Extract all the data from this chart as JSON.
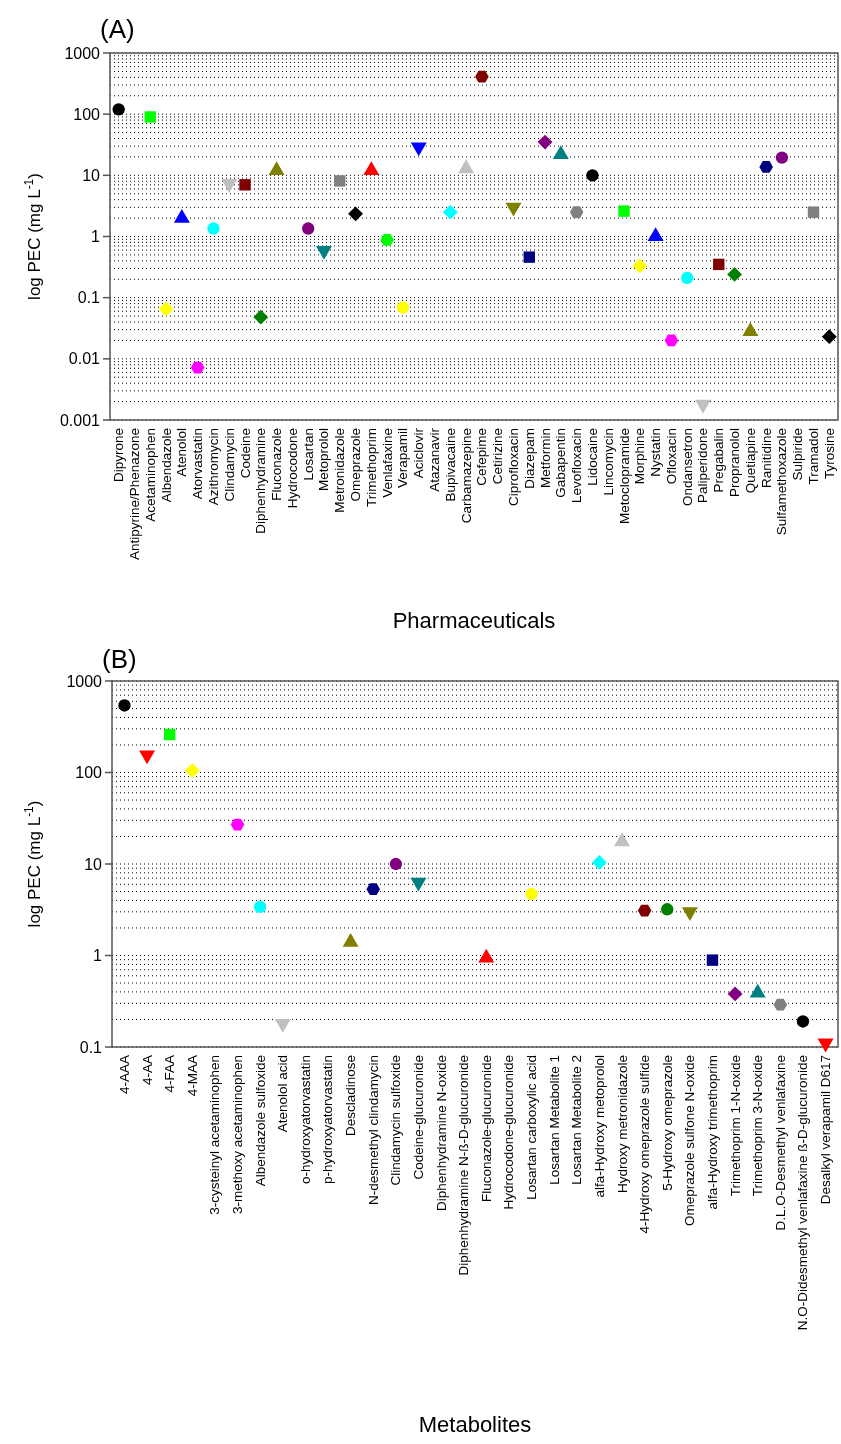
{
  "chart_data": [
    {
      "type": "scatter",
      "title": "(A)",
      "xlabel": "Pharmaceuticals",
      "ylabel": "log PEC (mg L$^{-1}$)",
      "log": "y",
      "grid": true,
      "categories": [
        "Dipyrone",
        "Antipyrine/Phenazone",
        "Acetaminophen",
        "Albendazole",
        "Atenolol",
        "Atorvastatin",
        "Azithromycin",
        "Clindamycin",
        "Codeine",
        "Diphenhydramine",
        "Fluconazole",
        "Hydrocodone",
        "Losartan",
        "Metoprolol",
        "Metronidazole",
        "Omeprazole",
        "Trimethoprim",
        "Venlafaxine",
        "Verapamil",
        "Aciclovir",
        "Atazanavir",
        "Bupivacaine",
        "Carbamazepine",
        "Cefepime",
        "Cetirizine",
        "Ciprofloxacin",
        "Diazepam",
        "Metformin",
        "Gabapentin",
        "Levofloxacin",
        "Lidocaine",
        "Lincomycin",
        "Metoclopramide",
        "Morphine",
        "Nystatin",
        "Ofloxacin",
        "Ondansetron",
        "Paliperidone",
        "Pregabalin",
        "Propranolol",
        "Quetiapine",
        "Ranitidine",
        "Sulfamethoxazole",
        "Sulpiride",
        "Tramadol",
        "Tyrosine"
      ],
      "series": [
        {
          "marker": "circle",
          "values": [
            120,
            null,
            null,
            null,
            null,
            null,
            1.35,
            null,
            null,
            null,
            null,
            null,
            1.35,
            null,
            null,
            null,
            null,
            null,
            0.069,
            null,
            null,
            null,
            null,
            null,
            null,
            null,
            null,
            null,
            null,
            null,
            10,
            null,
            null,
            null,
            null,
            null,
            0.21,
            null,
            null,
            null,
            null,
            null,
            19.5,
            null,
            null,
            null
          ],
          "colors": [
            "#000000",
            null,
            null,
            null,
            null,
            null,
            "#00ffff",
            null,
            null,
            null,
            null,
            null,
            "#800080",
            null,
            null,
            null,
            null,
            null,
            "#ffff00",
            null,
            null,
            null,
            null,
            null,
            null,
            null,
            null,
            null,
            null,
            null,
            "#000000",
            null,
            null,
            null,
            null,
            null,
            "#00ffff",
            null,
            null,
            null,
            null,
            null,
            "#800080",
            null,
            null,
            null
          ]
        },
        {
          "marker": "square",
          "values": [
            null,
            null,
            90,
            null,
            null,
            null,
            null,
            null,
            7,
            null,
            null,
            null,
            null,
            null,
            8.1,
            null,
            null,
            null,
            null,
            null,
            null,
            null,
            null,
            null,
            null,
            null,
            0.46,
            null,
            null,
            null,
            null,
            null,
            2.6,
            null,
            null,
            null,
            null,
            null,
            0.35,
            null,
            null,
            null,
            null,
            null,
            2.5,
            null
          ],
          "colors": [
            null,
            null,
            "#00ff00",
            null,
            null,
            null,
            null,
            null,
            "#800000",
            null,
            null,
            null,
            null,
            null,
            "#808080",
            null,
            null,
            null,
            null,
            null,
            null,
            null,
            null,
            null,
            null,
            null,
            "#000080",
            null,
            null,
            null,
            null,
            null,
            "#00ff00",
            null,
            null,
            null,
            null,
            null,
            "#800000",
            null,
            null,
            null,
            null,
            null,
            "#808080",
            null
          ]
        },
        {
          "marker": "triangle",
          "values": [
            null,
            null,
            null,
            null,
            2,
            null,
            null,
            null,
            null,
            null,
            12,
            null,
            null,
            null,
            null,
            null,
            12,
            null,
            null,
            null,
            null,
            null,
            12.9,
            null,
            null,
            null,
            null,
            null,
            22,
            null,
            null,
            null,
            null,
            null,
            1,
            null,
            null,
            null,
            null,
            null,
            0.028,
            null,
            null,
            null,
            null,
            null
          ],
          "colors": [
            null,
            null,
            null,
            null,
            "#0000ff",
            null,
            null,
            null,
            null,
            null,
            "#808000",
            null,
            null,
            null,
            null,
            null,
            "#ff0000",
            null,
            null,
            null,
            null,
            null,
            "#c0c0c0",
            null,
            null,
            null,
            null,
            null,
            "#008080",
            null,
            null,
            null,
            null,
            null,
            "#0000ff",
            null,
            null,
            null,
            null,
            null,
            "#808000",
            null,
            null,
            null,
            null,
            null
          ]
        },
        {
          "marker": "triangle-down",
          "values": [
            null,
            null,
            null,
            null,
            null,
            null,
            null,
            7.3,
            null,
            null,
            null,
            null,
            null,
            0.59,
            null,
            null,
            null,
            null,
            null,
            29,
            null,
            null,
            null,
            null,
            null,
            3,
            null,
            null,
            null,
            null,
            null,
            null,
            null,
            null,
            null,
            null,
            null,
            0.0018,
            null,
            null,
            null,
            null,
            null,
            null,
            null,
            null
          ],
          "colors": [
            null,
            null,
            null,
            null,
            null,
            null,
            null,
            "#c0c0c0",
            null,
            null,
            null,
            null,
            null,
            "#008080",
            null,
            null,
            null,
            null,
            null,
            "#0000ff",
            null,
            null,
            null,
            null,
            null,
            "#808000",
            null,
            null,
            null,
            null,
            null,
            null,
            null,
            null,
            null,
            null,
            null,
            "#c0c0c0",
            null,
            null,
            null,
            null,
            null,
            null,
            null,
            null
          ]
        },
        {
          "marker": "diamond",
          "values": [
            null,
            null,
            null,
            0.065,
            null,
            null,
            null,
            null,
            null,
            0.048,
            null,
            null,
            null,
            null,
            null,
            2.35,
            null,
            null,
            null,
            null,
            null,
            2.5,
            null,
            null,
            null,
            null,
            null,
            35,
            null,
            null,
            null,
            null,
            null,
            0.33,
            null,
            null,
            null,
            null,
            null,
            0.24,
            null,
            null,
            null,
            null,
            null,
            0.023
          ],
          "colors": [
            null,
            null,
            null,
            "#ffff00",
            null,
            null,
            null,
            null,
            null,
            "#008000",
            null,
            null,
            null,
            null,
            null,
            "#000000",
            null,
            null,
            null,
            null,
            null,
            "#00ffff",
            null,
            null,
            null,
            null,
            null,
            "#800080",
            null,
            null,
            null,
            null,
            null,
            "#ffff00",
            null,
            null,
            null,
            null,
            null,
            "#008000",
            null,
            null,
            null,
            null,
            null,
            "#000000"
          ]
        },
        {
          "values": [
            null,
            null,
            null,
            null,
            null,
            0.0072,
            null,
            null,
            null,
            null,
            null,
            null,
            null,
            null,
            null,
            null,
            null,
            0.88,
            null,
            null,
            null,
            null,
            null,
            410,
            null,
            null,
            null,
            null,
            null,
            2.5,
            null,
            null,
            null,
            null,
            null,
            0.02,
            null,
            null,
            null,
            null,
            null,
            13.7,
            null,
            null,
            null,
            null
          ],
          "colors": [
            null,
            null,
            null,
            null,
            null,
            "#ff00ff",
            null,
            null,
            null,
            null,
            null,
            null,
            null,
            null,
            null,
            null,
            null,
            "#00ff00",
            null,
            null,
            null,
            null,
            null,
            "#800000",
            null,
            null,
            null,
            null,
            null,
            "#808080",
            null,
            null,
            null,
            null,
            null,
            "#ff00ff",
            null,
            null,
            null,
            null,
            null,
            "#000080",
            null,
            null,
            null,
            null
          ]
        }
      ],
      "ylim": [
        0.001,
        1000
      ],
      "yticks": [
        0.001,
        {
          "value": 0.002,
          "label": null
        },
        {
          "value": 0.003,
          "label": null
        },
        {
          "value": 0.004,
          "label": null
        },
        {
          "value": 0.005,
          "label": null
        },
        {
          "value": 0.006,
          "label": null
        },
        {
          "value": 0.007,
          "label": null
        },
        {
          "value": 0.008,
          "label": null
        },
        {
          "value": 0.009,
          "label": null
        },
        0.01,
        {
          "value": 0.02,
          "label": null
        },
        {
          "value": 0.03,
          "label": null
        },
        {
          "value": 0.04,
          "label": null
        },
        {
          "value": 0.05,
          "label": null
        },
        {
          "value": 0.06,
          "label": null
        },
        {
          "value": 0.07,
          "label": null
        },
        {
          "value": 0.08,
          "label": null
        },
        {
          "value": 0.09,
          "label": null
        },
        0.1,
        {
          "value": 0.2,
          "label": null
        },
        {
          "value": 0.3,
          "label": null
        },
        {
          "value": 0.4,
          "label": null
        },
        {
          "value": 0.5,
          "label": null
        },
        {
          "value": 0.6,
          "label": null
        },
        {
          "value": 0.7,
          "label": null
        },
        {
          "value": 0.8,
          "label": null
        },
        {
          "value": 0.9,
          "label": null
        },
        1,
        {
          "value": 2,
          "label": null
        },
        {
          "value": 3,
          "label": null
        },
        {
          "value": 4,
          "label": null
        },
        {
          "value": 5,
          "label": null
        },
        {
          "value": 6,
          "label": null
        },
        {
          "value": 7,
          "label": null
        },
        {
          "value": 8,
          "label": null
        },
        {
          "value": 9,
          "label": null
        },
        10,
        {
          "value": 20,
          "label": null
        },
        {
          "value": 30,
          "label": null
        },
        {
          "value": 40,
          "label": null
        },
        {
          "value": 50,
          "label": null
        },
        {
          "value": 60,
          "label": null
        },
        {
          "value": 70,
          "label": null
        },
        {
          "value": 80,
          "label": null
        },
        {
          "value": 90,
          "label": null
        },
        100,
        {
          "value": 200,
          "label": null
        },
        {
          "value": 300,
          "label": null
        },
        {
          "value": 400,
          "label": null
        },
        {
          "value": 500,
          "label": null
        },
        {
          "value": 600,
          "label": null
        },
        {
          "value": 700,
          "label": null
        },
        {
          "value": 800,
          "label": null
        },
        {
          "value": 900,
          "label": null
        },
        1000
      ]
    },
    {
      "type": "scatter",
      "title": "(B)",
      "xlabel": "Metabolites",
      "ylabel": "log PEC (mg L$^{-1}$)",
      "log": "y",
      "grid": true,
      "categories": [
        "4-AAA",
        "4-AA",
        "4-FAA",
        "4-MAA",
        "3-cysteinyl acetaminophen",
        "3-methoxy acetaminophen",
        "Albendazole sulfoxide",
        "Atenolol acid",
        "o-hydroxyatorvastatin",
        "p-hydroxyatorvastatin",
        "Descladinose",
        "N-desmethyl clindamycin",
        "Clindamycin sulfoxide",
        "Codeine-glucuronide",
        "Diphenhydramine N-oxide",
        "Diphenhydramine N-ß-D-glucuronide",
        "Fluconazole-glucuronide",
        "Hydrocodone-glucuronide",
        "Losartan carboxylic acid",
        "Losartan Metabolite 1",
        "Losartan Metabolite 2",
        "alfa-Hydroxy metoprolol",
        "Hydroxy metronidazole",
        "4-Hydroxy omeprazole sulfide",
        "5-Hydroxy omeprazole",
        "Omeprazole sulfone N-oxide",
        "alfa-Hydroxy trimethoprim",
        "Trimethoprim 1-N-oxide",
        "Trimethoprim 3-N-oxide",
        "D.L.O-Desmethyl venlafaxine",
        "N.O-Didesmethyl venlafaxine ß-D-glucuronide",
        "Desalkyl verapamil D617"
      ],
      "series": [
        {
          "marker": "circle",
          "values": [
            540,
            null,
            null,
            null,
            null,
            null,
            3.4,
            null,
            null,
            null,
            null,
            null,
            10,
            null,
            null,
            null,
            null,
            null,
            4.7,
            null,
            null,
            null,
            null,
            null,
            3.2,
            null,
            null,
            null,
            null,
            null,
            0.19,
            null
          ],
          "colors": [
            "#000000",
            null,
            null,
            null,
            null,
            null,
            "#00ffff",
            null,
            null,
            null,
            null,
            null,
            "#800080",
            null,
            null,
            null,
            null,
            null,
            "#ffff00",
            null,
            null,
            null,
            null,
            null,
            "#008000",
            null,
            null,
            null,
            null,
            null,
            "#000000",
            null
          ]
        },
        {
          "marker": "square",
          "values": [
            null,
            null,
            260,
            null,
            null,
            null,
            null,
            null,
            null,
            null,
            null,
            null,
            null,
            null,
            null,
            null,
            null,
            null,
            null,
            null,
            null,
            null,
            null,
            null,
            null,
            null,
            0.89,
            null,
            null,
            null,
            null,
            null
          ],
          "colors": [
            null,
            null,
            "#00ff00",
            null,
            null,
            null,
            null,
            null,
            null,
            null,
            null,
            null,
            null,
            null,
            null,
            null,
            null,
            null,
            null,
            null,
            null,
            null,
            null,
            null,
            null,
            null,
            "#000080",
            null,
            null,
            null,
            null,
            null
          ]
        },
        {
          "marker": "triangle",
          "values": [
            null,
            null,
            null,
            null,
            null,
            null,
            null,
            null,
            null,
            null,
            1.4,
            null,
            null,
            null,
            null,
            null,
            0.94,
            null,
            null,
            null,
            null,
            null,
            17.6,
            null,
            null,
            null,
            null,
            null,
            0.39,
            null,
            null,
            null
          ],
          "colors": [
            null,
            null,
            null,
            null,
            null,
            null,
            null,
            null,
            null,
            null,
            "#808000",
            null,
            null,
            null,
            null,
            null,
            "#ff0000",
            null,
            null,
            null,
            null,
            null,
            "#c0c0c0",
            null,
            null,
            null,
            null,
            null,
            "#008080",
            null,
            null,
            null
          ]
        },
        {
          "marker": "triangle-down",
          "values": [
            null,
            155,
            null,
            null,
            null,
            null,
            null,
            0.18,
            null,
            null,
            null,
            null,
            null,
            6.3,
            null,
            null,
            null,
            null,
            null,
            null,
            null,
            null,
            null,
            null,
            null,
            3,
            null,
            null,
            null,
            null,
            null,
            0.11
          ],
          "colors": [
            null,
            "#ff0000",
            null,
            null,
            null,
            null,
            null,
            "#c0c0c0",
            null,
            null,
            null,
            null,
            null,
            "#008080",
            null,
            null,
            null,
            null,
            null,
            null,
            null,
            null,
            null,
            null,
            null,
            "#808000",
            null,
            null,
            null,
            null,
            null,
            "#ff0000"
          ]
        },
        {
          "marker": "diamond",
          "values": [
            null,
            null,
            null,
            105,
            null,
            null,
            null,
            null,
            null,
            null,
            null,
            null,
            null,
            null,
            null,
            null,
            null,
            null,
            null,
            null,
            null,
            10.4,
            null,
            null,
            null,
            null,
            null,
            0.38,
            null,
            null,
            null,
            null
          ],
          "colors": [
            null,
            null,
            null,
            "#ffff00",
            null,
            null,
            null,
            null,
            null,
            null,
            null,
            null,
            null,
            null,
            null,
            null,
            null,
            null,
            null,
            null,
            null,
            "#00ffff",
            null,
            null,
            null,
            null,
            null,
            "#800080",
            null,
            null,
            null,
            null
          ]
        },
        {
          "values": [
            null,
            null,
            null,
            null,
            null,
            27,
            null,
            null,
            null,
            null,
            null,
            5.3,
            null,
            null,
            null,
            null,
            null,
            null,
            null,
            null,
            null,
            null,
            null,
            3.1,
            null,
            null,
            null,
            null,
            null,
            0.29,
            null,
            null
          ],
          "colors": [
            null,
            null,
            null,
            null,
            null,
            "#ff00ff",
            null,
            null,
            null,
            null,
            null,
            "#000080",
            null,
            null,
            null,
            null,
            null,
            null,
            null,
            null,
            null,
            null,
            null,
            "#800000",
            null,
            null,
            null,
            null,
            null,
            "#808080",
            null,
            null
          ]
        }
      ],
      "ylim": [
        0.1,
        1000
      ],
      "yticks": [
        0.1,
        {
          "value": 0.2,
          "label": null
        },
        {
          "value": 0.3,
          "label": null
        },
        {
          "value": 0.4,
          "label": null
        },
        {
          "value": 0.5,
          "label": null
        },
        {
          "value": 0.6,
          "label": null
        },
        {
          "value": 0.7,
          "label": null
        },
        {
          "value": 0.8,
          "label": null
        },
        {
          "value": 0.9,
          "label": null
        },
        1,
        {
          "value": 2,
          "label": null
        },
        {
          "value": 3,
          "label": null
        },
        {
          "value": 4,
          "label": null
        },
        {
          "value": 5,
          "label": null
        },
        {
          "value": 6,
          "label": null
        },
        {
          "value": 7,
          "label": null
        },
        {
          "value": 8,
          "label": null
        },
        {
          "value": 9,
          "label": null
        },
        10,
        {
          "value": 20,
          "label": null
        },
        {
          "value": 30,
          "label": null
        },
        {
          "value": 40,
          "label": null
        },
        {
          "value": 50,
          "label": null
        },
        {
          "value": 60,
          "label": null
        },
        {
          "value": 70,
          "label": null
        },
        {
          "value": 80,
          "label": null
        },
        {
          "value": 90,
          "label": null
        },
        100,
        {
          "value": 200,
          "label": null
        },
        {
          "value": 300,
          "label": null
        },
        {
          "value": 400,
          "label": null
        },
        {
          "value": 500,
          "label": null
        },
        {
          "value": 600,
          "label": null
        },
        {
          "value": 700,
          "label": null
        },
        {
          "value": 800,
          "label": null
        },
        {
          "value": 900,
          "label": null
        },
        1000
      ]
    }
  ]
}
